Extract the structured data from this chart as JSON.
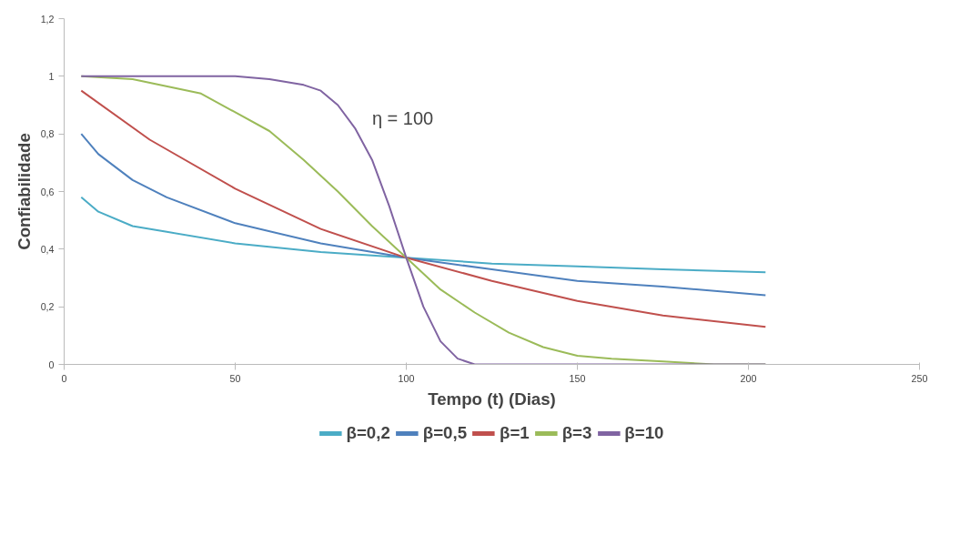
{
  "chart_data": {
    "type": "line",
    "xlabel": "Tempo (t) (Dias)",
    "ylabel": "Confiabilidade",
    "annotations": [
      "η = 100"
    ],
    "xlim": [
      0,
      250
    ],
    "ylim": [
      0,
      1.2
    ],
    "xticks": [
      0,
      50,
      100,
      150,
      200,
      250
    ],
    "yticks": [
      0,
      {
        "value": 0.2,
        "label": "0,2"
      },
      {
        "value": 0.4,
        "label": "0,4"
      },
      {
        "value": 0.6,
        "label": "0,6"
      },
      {
        "value": 0.8,
        "label": "0,8"
      },
      1,
      {
        "value": 1.2,
        "label": "1,2"
      }
    ],
    "grid": false,
    "legend": "bottom",
    "marker": "none",
    "line_style": "solid",
    "series": [
      {
        "name": "β=0,2",
        "color": "#4bacc6",
        "x": [
          5,
          10,
          20,
          30,
          50,
          75,
          100,
          125,
          150,
          175,
          205
        ],
        "values": [
          0.58,
          0.53,
          0.48,
          0.46,
          0.42,
          0.39,
          0.37,
          0.35,
          0.34,
          0.33,
          0.32
        ]
      },
      {
        "name": "β=0,5",
        "color": "#4f81bd",
        "x": [
          5,
          10,
          20,
          30,
          50,
          75,
          100,
          125,
          150,
          175,
          205
        ],
        "values": [
          0.8,
          0.73,
          0.64,
          0.58,
          0.49,
          0.42,
          0.37,
          0.33,
          0.29,
          0.27,
          0.24
        ]
      },
      {
        "name": "β=1",
        "color": "#c0504d",
        "x": [
          5,
          25,
          50,
          75,
          100,
          125,
          150,
          175,
          205
        ],
        "values": [
          0.95,
          0.78,
          0.61,
          0.47,
          0.37,
          0.29,
          0.22,
          0.17,
          0.13
        ]
      },
      {
        "name": "β=3",
        "color": "#9bbb59",
        "x": [
          5,
          20,
          40,
          60,
          70,
          80,
          90,
          100,
          110,
          120,
          130,
          140,
          150,
          160,
          175,
          190,
          205
        ],
        "values": [
          1.0,
          0.99,
          0.94,
          0.81,
          0.71,
          0.6,
          0.48,
          0.37,
          0.26,
          0.18,
          0.11,
          0.06,
          0.03,
          0.02,
          0.01,
          0.0,
          0.0
        ]
      },
      {
        "name": "β=10",
        "color": "#8064a2",
        "x": [
          5,
          50,
          60,
          70,
          75,
          80,
          85,
          90,
          95,
          100,
          105,
          110,
          115,
          120,
          130,
          205
        ],
        "values": [
          1.0,
          1.0,
          0.99,
          0.97,
          0.95,
          0.9,
          0.82,
          0.71,
          0.55,
          0.37,
          0.2,
          0.08,
          0.02,
          0.0,
          0.0,
          0.0
        ]
      }
    ]
  }
}
